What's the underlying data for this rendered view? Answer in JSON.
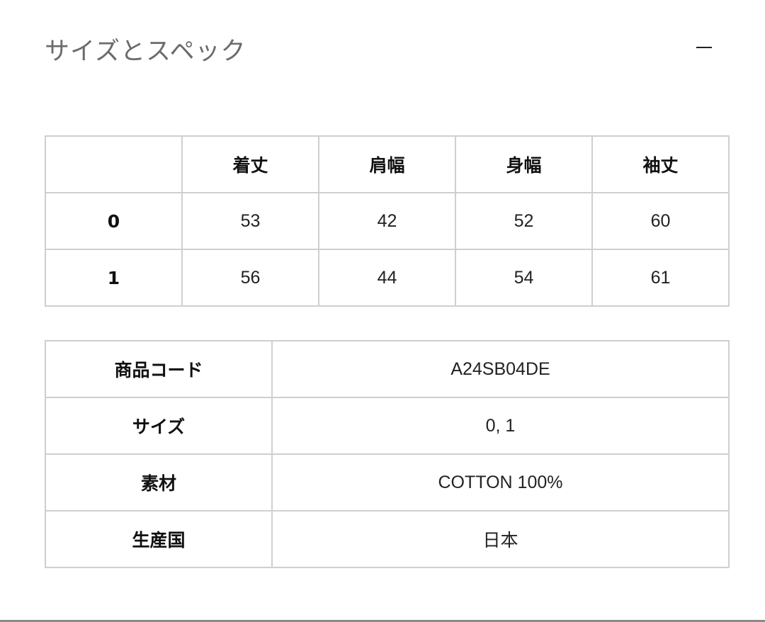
{
  "section": {
    "title": "サイズとスペック",
    "collapse_icon": "minus-icon"
  },
  "size_table": {
    "headers": [
      "",
      "着丈",
      "肩幅",
      "身幅",
      "袖丈"
    ],
    "rows": [
      {
        "size": "0",
        "values": [
          "53",
          "42",
          "52",
          "60"
        ]
      },
      {
        "size": "1",
        "values": [
          "56",
          "44",
          "54",
          "61"
        ]
      }
    ]
  },
  "spec_table": {
    "rows": [
      {
        "label": "商品コード",
        "value": "A24SB04DE"
      },
      {
        "label": "サイズ",
        "value": "0, 1"
      },
      {
        "label": "素材",
        "value": "COTTON 100%"
      },
      {
        "label": "生産国",
        "value": "日本"
      }
    ]
  }
}
